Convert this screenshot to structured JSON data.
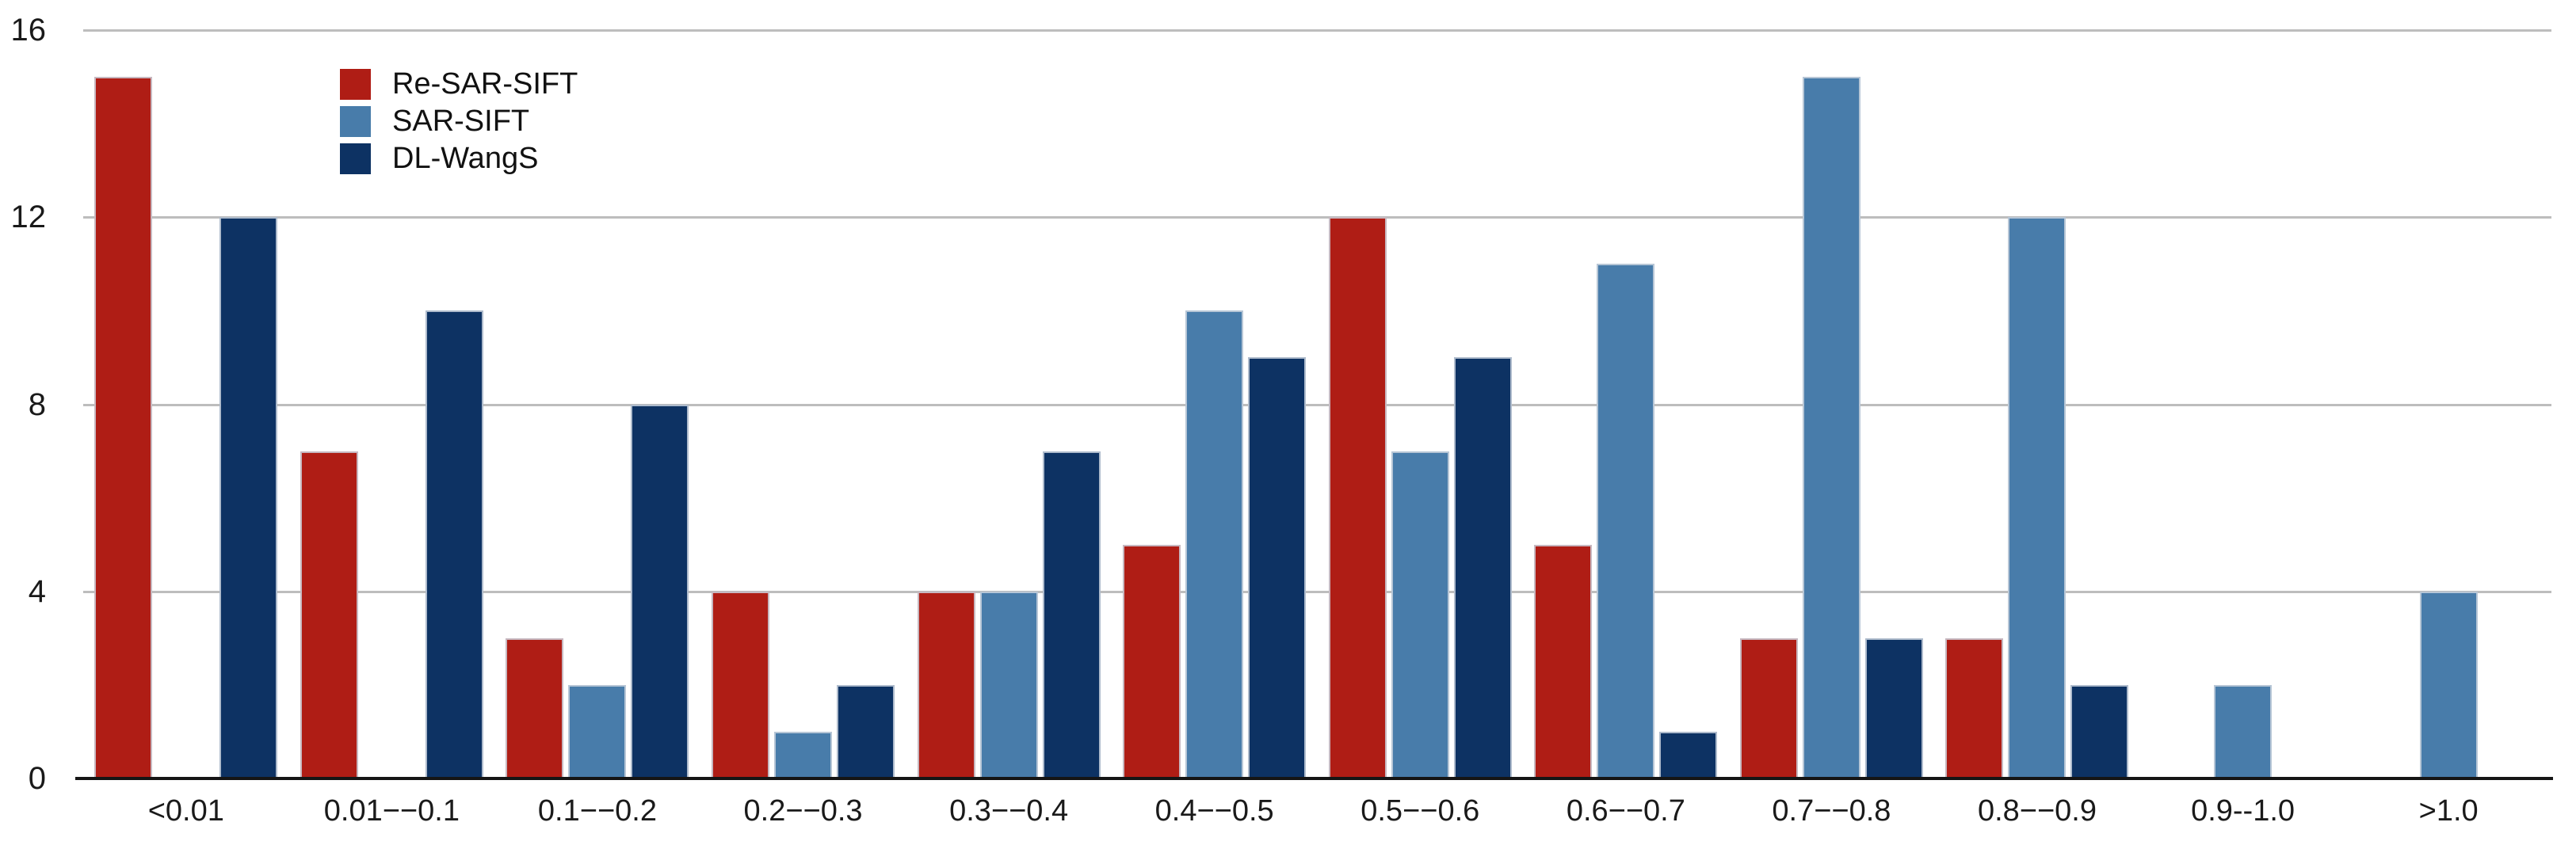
{
  "chart_data": {
    "type": "bar",
    "title": "",
    "xlabel": "",
    "ylabel": "",
    "categories": [
      "<0.01",
      "0.01−−0.1",
      "0.1−−0.2",
      "0.2−−0.3",
      "0.3−−0.4",
      "0.4−−0.5",
      "0.5−−0.6",
      "0.6−−0.7",
      "0.7−−0.8",
      "0.8−−0.9",
      "0.9--1.0",
      ">1.0"
    ],
    "series": [
      {
        "name": "Re-SAR-SIFT",
        "color": "#AF1D15",
        "values": [
          15,
          7,
          3,
          4,
          4,
          5,
          12,
          5,
          3,
          3,
          0,
          0
        ]
      },
      {
        "name": "SAR-SIFT",
        "color": "#487CAA",
        "values": [
          0,
          0,
          2,
          1,
          4,
          10,
          7,
          11,
          15,
          12,
          2,
          4
        ]
      },
      {
        "name": "DL-WangS",
        "color": "#0D3263",
        "values": [
          12,
          10,
          8,
          2,
          7,
          9,
          9,
          1,
          3,
          2,
          0,
          0
        ]
      }
    ],
    "ylim": [
      0,
      16
    ],
    "yticks": [
      0,
      4,
      8,
      12,
      16
    ],
    "grid": true,
    "gridline_color": "#bdbdbd",
    "axis_color": "#151515",
    "legend_position": "top-left-inset"
  }
}
